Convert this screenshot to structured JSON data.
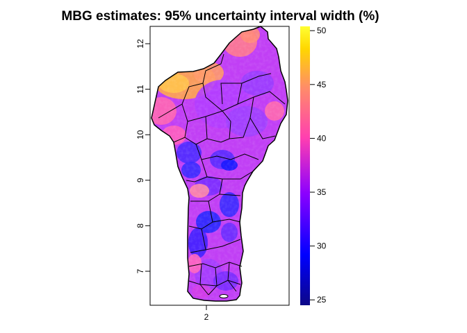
{
  "map": {
    "title": "MBG estimates: 95% uncertainty interval width (%)",
    "x_axis": {
      "ticks": [
        {
          "value": 2,
          "label": "2"
        }
      ]
    },
    "y_axis": {
      "ticks": [
        {
          "value": 7,
          "label": "7"
        },
        {
          "value": 8,
          "label": "8"
        },
        {
          "value": 9,
          "label": "9"
        },
        {
          "value": 10,
          "label": "10"
        },
        {
          "value": 11,
          "label": "11"
        },
        {
          "value": 12,
          "label": "12"
        }
      ]
    },
    "extent": {
      "lon": [
        1.25,
        4.15
      ],
      "lat": [
        6.2,
        12.45
      ]
    },
    "colors": {
      "boundary": "#000000",
      "water_body": "#ffffff"
    }
  },
  "legend": {
    "range": [
      24.5,
      50.4
    ],
    "ticks": [
      {
        "value": 25,
        "label": "25"
      },
      {
        "value": 30,
        "label": "30"
      },
      {
        "value": 35,
        "label": "35"
      },
      {
        "value": 40,
        "label": "40"
      },
      {
        "value": 45,
        "label": "45"
      },
      {
        "value": 50,
        "label": "50"
      }
    ],
    "color_stops": [
      "#0d0887",
      "#0000ff",
      "#8b00ff",
      "#ff3fb0",
      "#ff8c69",
      "#ffd700",
      "#ffff33"
    ]
  }
}
